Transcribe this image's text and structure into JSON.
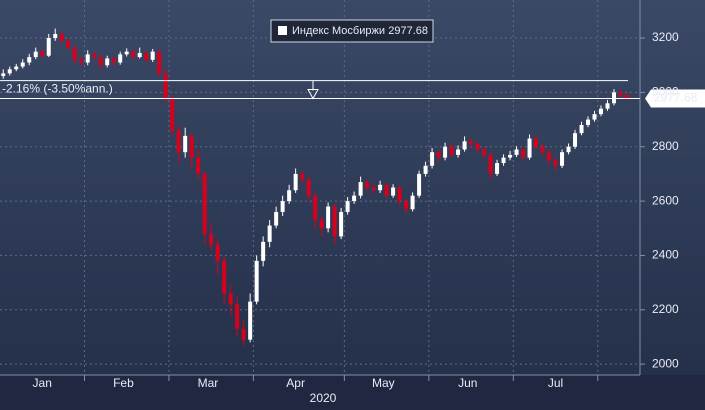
{
  "chart_data": {
    "type": "candlestick",
    "series": [
      {
        "name": "Индекс Мосбиржи",
        "up_color": "#ffffff",
        "down_color": "#d9001b",
        "open": [
          3060,
          3070,
          3085,
          3095,
          3110,
          3130,
          3150,
          3135,
          3200,
          3215,
          3190,
          3165,
          3120,
          3110,
          3140,
          3130,
          3100,
          3125,
          3110,
          3140,
          3150,
          3130,
          3145,
          3120,
          3150,
          3070,
          2980,
          2860,
          2780,
          2840,
          2760,
          2700,
          2480,
          2440,
          2380,
          2260,
          2220,
          2130,
          2090,
          2230,
          2380,
          2450,
          2510,
          2560,
          2600,
          2640,
          2700,
          2680,
          2620,
          2530,
          2500,
          2580,
          2470,
          2560,
          2600,
          2620,
          2670,
          2650,
          2640,
          2660,
          2620,
          2650,
          2600,
          2570,
          2620,
          2700,
          2730,
          2780,
          2760,
          2800,
          2770,
          2790,
          2820,
          2810,
          2790,
          2770,
          2700,
          2740,
          2760,
          2770,
          2790,
          2760,
          2830,
          2800,
          2780,
          2750,
          2730,
          2780,
          2800,
          2850,
          2880,
          2900,
          2920,
          2940,
          2960,
          3000,
          2990
        ],
        "high": [
          3085,
          3095,
          3105,
          3122,
          3142,
          3165,
          3160,
          3215,
          3235,
          3225,
          3198,
          3172,
          3135,
          3155,
          3150,
          3138,
          3135,
          3132,
          3150,
          3162,
          3158,
          3165,
          3152,
          3160,
          3158,
          3080,
          2990,
          2880,
          2870,
          2850,
          2790,
          2710,
          2520,
          2460,
          2400,
          2290,
          2250,
          2160,
          2260,
          2400,
          2470,
          2530,
          2580,
          2620,
          2660,
          2720,
          2712,
          2690,
          2630,
          2545,
          2595,
          2590,
          2575,
          2615,
          2635,
          2690,
          2680,
          2665,
          2675,
          2668,
          2662,
          2658,
          2610,
          2632,
          2712,
          2745,
          2795,
          2790,
          2815,
          2810,
          2805,
          2838,
          2830,
          2818,
          2800,
          2778,
          2752,
          2772,
          2785,
          2802,
          2798,
          2845,
          2838,
          2810,
          2788,
          2760,
          2790,
          2812,
          2862,
          2892,
          2912,
          2932,
          2952,
          2972,
          3012,
          3008,
          2998
        ],
        "low": [
          3050,
          3062,
          3078,
          3088,
          3100,
          3122,
          3125,
          3130,
          3190,
          3180,
          3155,
          3105,
          3095,
          3100,
          3118,
          3085,
          3092,
          3098,
          3102,
          3132,
          3120,
          3125,
          3108,
          3112,
          3060,
          2960,
          2840,
          2740,
          2760,
          2720,
          2680,
          2440,
          2420,
          2330,
          2220,
          2180,
          2100,
          2070,
          2080,
          2220,
          2360,
          2430,
          2500,
          2545,
          2590,
          2630,
          2665,
          2600,
          2500,
          2470,
          2485,
          2440,
          2460,
          2550,
          2590,
          2610,
          2640,
          2625,
          2630,
          2610,
          2612,
          2585,
          2555,
          2562,
          2612,
          2690,
          2720,
          2745,
          2750,
          2760,
          2760,
          2782,
          2795,
          2780,
          2755,
          2680,
          2692,
          2730,
          2750,
          2762,
          2750,
          2752,
          2790,
          2768,
          2735,
          2712,
          2722,
          2772,
          2792,
          2842,
          2872,
          2892,
          2912,
          2932,
          2952,
          2980,
          2970
        ],
        "close": [
          3070,
          3085,
          3095,
          3110,
          3130,
          3150,
          3135,
          3200,
          3215,
          3190,
          3165,
          3120,
          3110,
          3140,
          3130,
          3100,
          3125,
          3110,
          3140,
          3150,
          3130,
          3145,
          3120,
          3150,
          3070,
          2980,
          2860,
          2780,
          2840,
          2760,
          2700,
          2480,
          2440,
          2380,
          2260,
          2220,
          2130,
          2090,
          2230,
          2380,
          2450,
          2510,
          2560,
          2600,
          2640,
          2700,
          2680,
          2620,
          2530,
          2500,
          2580,
          2470,
          2560,
          2600,
          2620,
          2670,
          2650,
          2640,
          2660,
          2620,
          2650,
          2600,
          2570,
          2620,
          2700,
          2730,
          2780,
          2760,
          2800,
          2770,
          2790,
          2820,
          2810,
          2790,
          2770,
          2700,
          2740,
          2760,
          2770,
          2790,
          2760,
          2830,
          2800,
          2780,
          2750,
          2730,
          2780,
          2800,
          2850,
          2880,
          2900,
          2920,
          2940,
          2960,
          3000,
          2990,
          2977.68
        ]
      }
    ],
    "categories": [
      null,
      null,
      null,
      null,
      null,
      null,
      null,
      null,
      null,
      null,
      null,
      null,
      null,
      null,
      null,
      null,
      null,
      null,
      null,
      null,
      null,
      null,
      null,
      null,
      null,
      null,
      null,
      null,
      null,
      null,
      null,
      null,
      null,
      null,
      null,
      null,
      null,
      null,
      null,
      null,
      null,
      null,
      null,
      null,
      null,
      null,
      null,
      null,
      null,
      null,
      null,
      null,
      null,
      null,
      null,
      null,
      null,
      null,
      null,
      null,
      null,
      null,
      null,
      null,
      null,
      null,
      null,
      null,
      null,
      null,
      null,
      null,
      null,
      null,
      null,
      null,
      null,
      null,
      null,
      null,
      null,
      null,
      null,
      null,
      null,
      null,
      null,
      null,
      null,
      null,
      null,
      null,
      null,
      null,
      null,
      null,
      null
    ],
    "xlim": [
      -0.5,
      98
    ],
    "xticks": [
      {
        "value": 6,
        "label": "Jan"
      },
      {
        "value": 18.5,
        "label": "Feb"
      },
      {
        "value": 31.5,
        "label": "Mar"
      },
      {
        "value": 45,
        "label": "Apr"
      },
      {
        "value": 58.5,
        "label": "May"
      },
      {
        "value": 71.5,
        "label": "Jun"
      },
      {
        "value": 85,
        "label": "Jul"
      }
    ],
    "xgrid": [
      12.5,
      25.5,
      38.5,
      52.5,
      65.5,
      78.5,
      91.5
    ],
    "x_label": "2020",
    "ylim": [
      1960,
      3340
    ],
    "yticks": [
      2000,
      2200,
      2400,
      2600,
      2800,
      3000,
      3200
    ],
    "grid": true,
    "legend_value": 2977.68,
    "last_price_label": 2977.68,
    "reference_level": 3043.5,
    "change_label": "-2.16% (-3.50%ann.)"
  }
}
